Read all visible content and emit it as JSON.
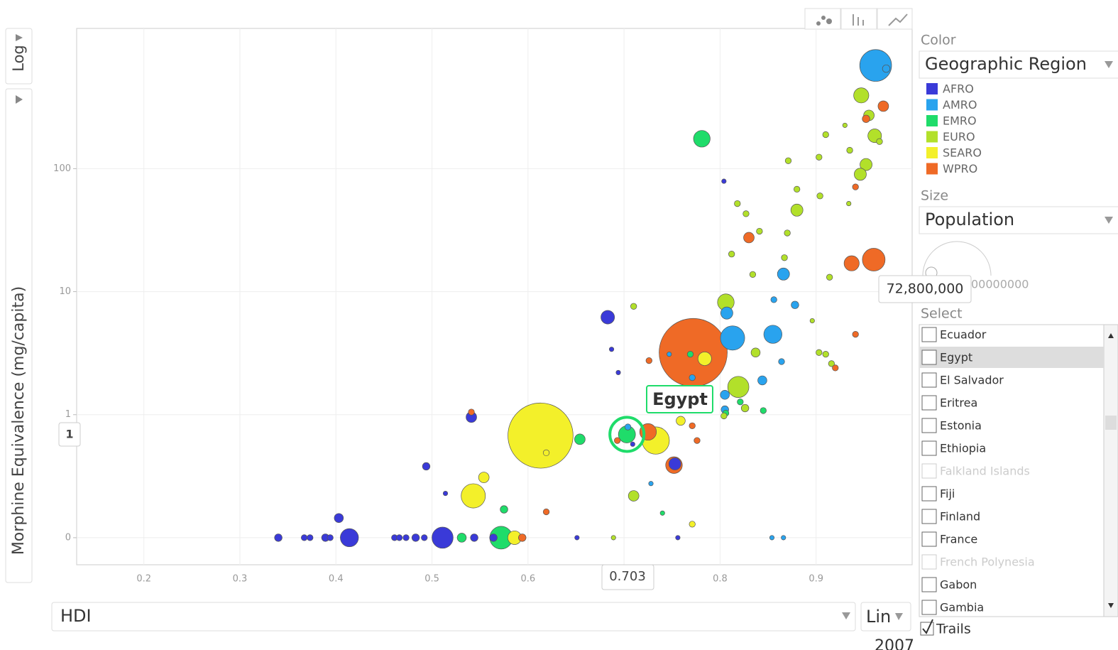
{
  "chart_data": {
    "type": "bubble",
    "x_label": "HDI",
    "y_label": "Morphine Equivalence (mg/capita)",
    "xlim": [
      0.13,
      1.0
    ],
    "xticks": [
      0.2,
      0.3,
      0.4,
      0.5,
      0.6,
      0.7,
      0.8,
      0.9
    ],
    "ylim": [
      -0.22,
      1380
    ],
    "yticks": [
      0,
      1,
      10,
      100
    ],
    "y_scale": "log",
    "grid": true,
    "series": [
      {
        "name": "AFRO",
        "color": "#3a3ad8",
        "x": [
          0.34,
          0.367,
          0.373,
          0.389,
          0.394,
          0.414,
          0.461,
          0.466,
          0.473,
          0.483,
          0.492,
          0.511,
          0.544,
          0.564,
          0.651,
          0.756,
          0.403,
          0.494,
          0.514,
          0.541,
          0.683,
          0.687,
          0.694,
          0.753,
          0.804,
          0.709
        ],
        "values": [
          0,
          0,
          0,
          0,
          0,
          0,
          0,
          0,
          0,
          0,
          0,
          0,
          0,
          0,
          0,
          0,
          0.16,
          0.58,
          0.36,
          0.98,
          6.2,
          3.4,
          2.2,
          0.6,
          79,
          0.76
        ],
        "sizes": [
          14300000,
          9200000,
          9200000,
          14300000,
          9200000,
          82500000,
          9200000,
          9200000,
          9200000,
          14300000,
          9200000,
          112000000,
          14300000,
          14300000,
          5200000,
          5200000,
          20600000,
          14300000,
          5200000,
          28100000,
          46400000,
          5200000,
          5200000,
          36700000,
          5200000,
          5200000
        ]
      },
      {
        "name": "AMRO",
        "color": "#29a3ee",
        "x": [
          0.962,
          0.973,
          0.866,
          0.807,
          0.813,
          0.855,
          0.878,
          0.856,
          0.864,
          0.844,
          0.805,
          0.805,
          0.704,
          0.747,
          0.771,
          0.728,
          0.854,
          0.866
        ],
        "values": [
          690,
          650,
          13.9,
          6.7,
          4.2,
          4.5,
          7.8,
          8.6,
          2.7,
          1.9,
          1.45,
          1.1,
          0.9,
          3.1,
          2.0,
          0.44,
          0,
          0
        ],
        "sizes": [
          253000000,
          14300000,
          36700000,
          36700000,
          147000000,
          82500000,
          14300000,
          9200000,
          9200000,
          20600000,
          20600000,
          14300000,
          9200000,
          5200000,
          9200000,
          5200000,
          5200000,
          5200000
        ]
      },
      {
        "name": "EMRO",
        "color": "#1fdc6a",
        "x": [
          0.781,
          0.703,
          0.654,
          0.572,
          0.531,
          0.575,
          0.74,
          0.769,
          0.845,
          0.806,
          0.821
        ],
        "values": [
          175,
          0.84,
          0.8,
          0,
          0,
          0.23,
          0.2,
          3.1,
          1.08,
          1.03,
          1.27
        ],
        "sizes": [
          69300000,
          72800000,
          28100000,
          129000000,
          20600000,
          14300000,
          5200000,
          9200000,
          9200000,
          9200000,
          9200000
        ]
      },
      {
        "name": "EURO",
        "color": "#b2e02a",
        "x": [
          0.947,
          0.961,
          0.952,
          0.946,
          0.955,
          0.966,
          0.91,
          0.93,
          0.935,
          0.903,
          0.871,
          0.88,
          0.88,
          0.904,
          0.934,
          0.818,
          0.827,
          0.841,
          0.87,
          0.867,
          0.812,
          0.834,
          0.914,
          0.896,
          0.806,
          0.819,
          0.837,
          0.903,
          0.91,
          0.826,
          0.71,
          0.71,
          0.689,
          0.916,
          0.804
        ],
        "values": [
          394,
          185,
          108,
          90,
          271,
          166,
          189,
          225,
          141,
          124,
          116,
          46,
          68,
          60,
          52,
          52,
          43,
          31,
          30,
          18.9,
          20.2,
          13.8,
          13.1,
          5.8,
          8.2,
          1.68,
          3.2,
          3.2,
          3.1,
          1.13,
          7.6,
          0.34,
          0,
          2.6,
          0.99
        ],
        "sizes": [
          57300000,
          46400000,
          36700000,
          36700000,
          28100000,
          9200000,
          9200000,
          5200000,
          9200000,
          9200000,
          9200000,
          36700000,
          9200000,
          9200000,
          5200000,
          9200000,
          9200000,
          9200000,
          9200000,
          9200000,
          9200000,
          9200000,
          9200000,
          5200000,
          69300000,
          112000000,
          20600000,
          9200000,
          9200000,
          14300000,
          9200000,
          28100000,
          5200000,
          9200000,
          9200000
        ]
      },
      {
        "name": "SEARO",
        "color": "#f3f02a",
        "x": [
          0.613,
          0.733,
          0.543,
          0.554,
          0.586,
          0.784,
          0.759,
          0.619,
          0.771
        ],
        "values": [
          0.83,
          0.79,
          0.34,
          0.49,
          0,
          2.85,
          0.95,
          0.69,
          0.11
        ],
        "sizes": [
          1060000000,
          186000000,
          147000000,
          28100000,
          46400000,
          46400000,
          20600000,
          9200000,
          9200000
        ]
      },
      {
        "name": "WPRO",
        "color": "#ef6a26",
        "x": [
          0.772,
          0.725,
          0.752,
          0.83,
          0.96,
          0.937,
          0.97,
          0.952,
          0.941,
          0.941,
          0.92,
          0.726,
          0.541,
          0.619,
          0.594,
          0.693,
          0.776,
          0.771
        ],
        "values": [
          3.2,
          0.86,
          0.59,
          27.5,
          18.2,
          17,
          322,
          254,
          71,
          4.5,
          2.4,
          2.75,
          1.05,
          0.21,
          0,
          0.79,
          0.79,
          0.91
        ],
        "sizes": [
          1160000000,
          69300000,
          69300000,
          28100000,
          129000000,
          57300000,
          28100000,
          14300000,
          9200000,
          9200000,
          9200000,
          9200000,
          9200000,
          9200000,
          14300000,
          9200000,
          9200000,
          9200000
        ]
      }
    ],
    "highlight": {
      "label": "Egypt",
      "series": 2,
      "index": 1,
      "x_label": "0.703",
      "y_label": "1"
    }
  },
  "controls": {
    "y_scale_button": "Log",
    "x_scale_button": "Lin",
    "x_dropdown": "HDI",
    "year": "2007",
    "color_title": "Color",
    "color_choice": "Geographic Region",
    "size_title": "Size",
    "size_choice": "Population",
    "size_tooltip": "72,800,000",
    "size_max_label": "00000000",
    "select_title": "Select",
    "select_items": [
      {
        "label": "Ecuador"
      },
      {
        "label": "Egypt",
        "selected": true
      },
      {
        "label": "El Salvador"
      },
      {
        "label": "Eritrea"
      },
      {
        "label": "Estonia"
      },
      {
        "label": "Ethiopia"
      },
      {
        "label": "Falkland Islands",
        "dimmed": true
      },
      {
        "label": "Fiji"
      },
      {
        "label": "Finland"
      },
      {
        "label": "France"
      },
      {
        "label": "French Polynesia",
        "dimmed": true
      },
      {
        "label": "Gabon"
      },
      {
        "label": "Gambia"
      }
    ],
    "trails": "Trails"
  }
}
